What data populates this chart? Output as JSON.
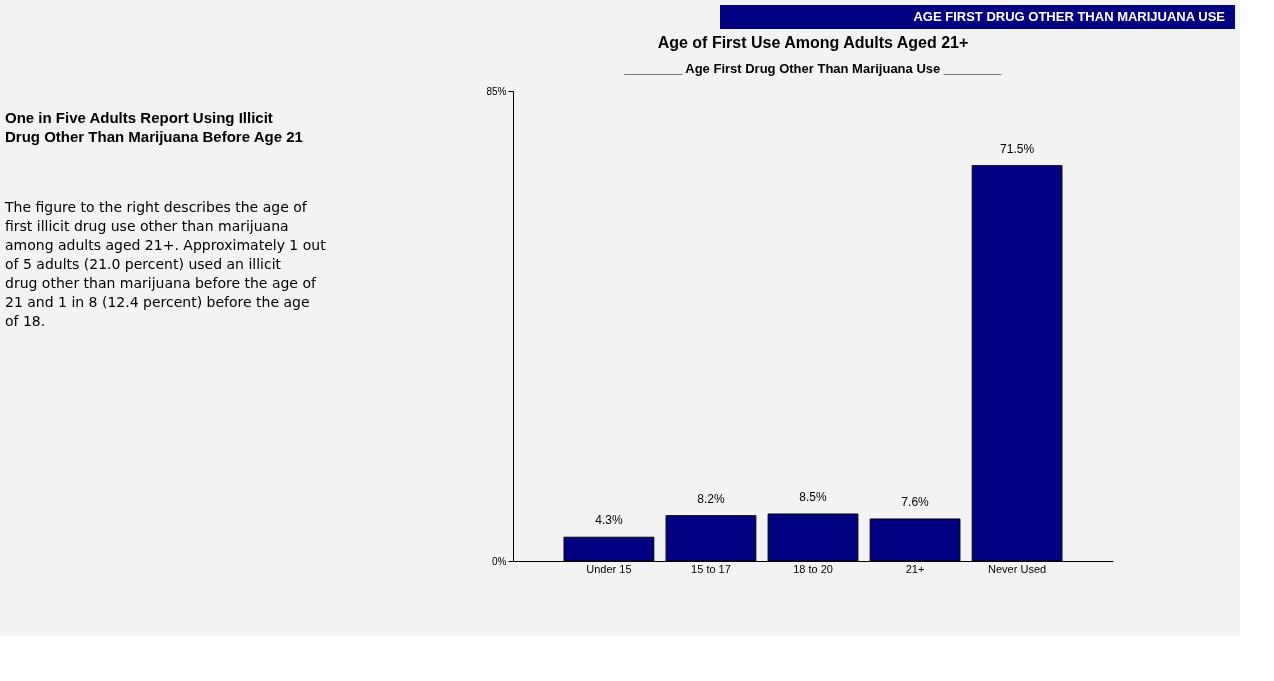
{
  "chart_data": {
    "type": "bar",
    "title": "Age of First Use Among Adults Aged 21+",
    "subtitle": "________ Age First Drug Other Than Marijuana Use ________",
    "categories": [
      "Under 15",
      "15 to 17",
      "18 to 20",
      "21+",
      "Never Used"
    ],
    "values": [
      4.3,
      8.2,
      8.5,
      7.6,
      71.5
    ],
    "value_labels": [
      "4.3%",
      "8.2%",
      "8.5%",
      "7.6%",
      "71.5%"
    ],
    "color": "#000080",
    "ylim": [
      0,
      85
    ],
    "yticks": [
      {
        "value": 0,
        "label": "0%"
      },
      {
        "value": 85,
        "label": "85%"
      }
    ],
    "grid": false,
    "annotations": [
      "AGE FIRST DRUG OTHER THAN MARIJUANA USE",
      "One in Five Adults Report Using Illicit Drug Other Than Marijuana Before Age 21",
      "The figure to the right describes the age of first illicit drug use other than marijuana among adults aged 21+. Approximately 1 out of 5 adults (21.0 percent) used an illicit drug other than marijuana before the age of 21 and 1 in 8 (12.4 percent) before the age of 18."
    ]
  }
}
